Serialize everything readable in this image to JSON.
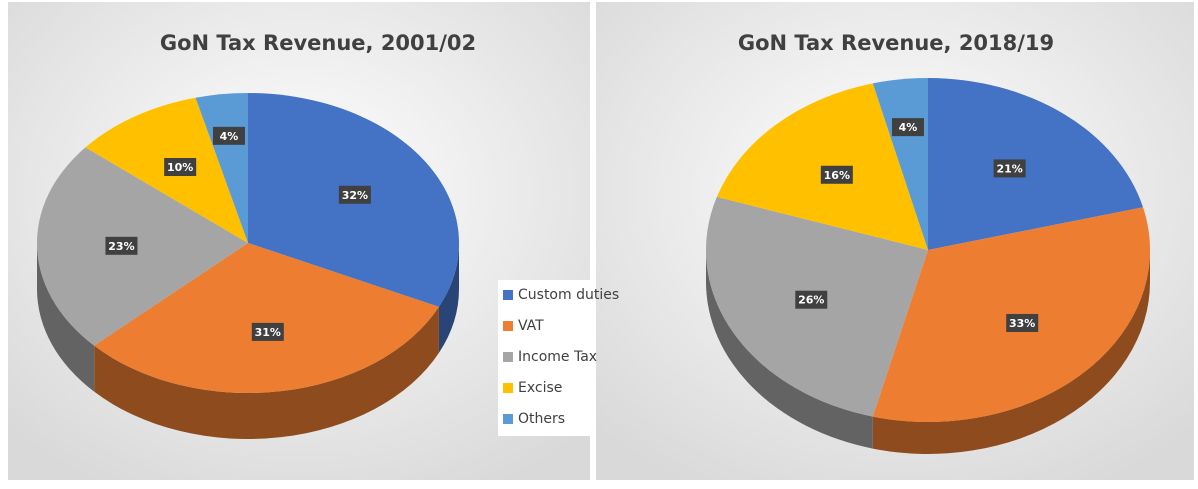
{
  "chart_data": [
    {
      "type": "pie",
      "title": "GoN Tax Revenue, 2001/02",
      "categories": [
        "Custom duties",
        "VAT",
        "Income Tax",
        "Excise",
        "Others"
      ],
      "values": [
        32,
        31,
        23,
        10,
        4
      ],
      "value_labels": [
        "32%",
        "31%",
        "23%",
        "10%",
        "4%"
      ],
      "colors": [
        "#4472c4",
        "#ed7d31",
        "#a5a5a5",
        "#ffc000",
        "#5b9bd5"
      ],
      "legend": "right"
    },
    {
      "type": "pie",
      "title": "GoN Tax Revenue, 2018/19",
      "categories": [
        "Custom duties",
        "VAT",
        "Income Tax",
        "Excise",
        "Others"
      ],
      "values": [
        21,
        33,
        26,
        16,
        4
      ],
      "value_labels": [
        "21%",
        "33%",
        "26%",
        "16%",
        "4%"
      ],
      "colors": [
        "#4472c4",
        "#ed7d31",
        "#a5a5a5",
        "#ffc000",
        "#5b9bd5"
      ]
    }
  ]
}
